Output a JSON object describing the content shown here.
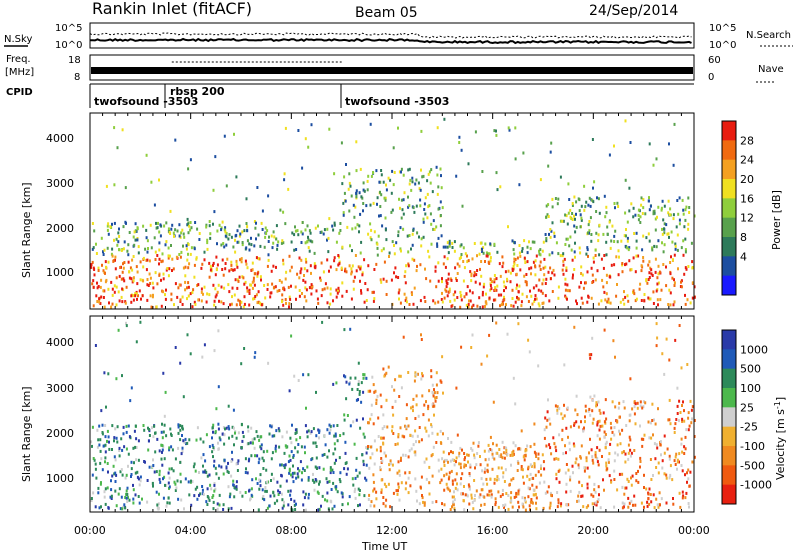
{
  "header": {
    "station": "Rankin Inlet (fitACF)",
    "beam": "Beam 05",
    "date": "24/Sep/2014"
  },
  "param_panels": {
    "nsky_label": "N.Sky",
    "nsearch_label": "N.Search",
    "freq_label": "Freq.",
    "freq_unit": "[MHz]",
    "nave_label": "Nave",
    "cpid_label": "CPID",
    "noise_ticks_left": [
      "10^5",
      "10^0"
    ],
    "noise_ticks_right": [
      "10^5",
      "10^0"
    ],
    "freq_ticks": [
      "18",
      "8"
    ],
    "nave_ticks": [
      "60",
      "0"
    ],
    "cpid_segments": [
      {
        "label": "twofsound -3503",
        "start_hour": 0
      },
      {
        "label": "rbsp 200",
        "start_hour": 3.25
      },
      {
        "label": "twofsound -3503",
        "start_hour": 10.0
      }
    ]
  },
  "chart_data": [
    {
      "type": "heatmap",
      "title": "Power",
      "ylabel": "Slant Range [km]",
      "y_ticks": [
        "1000",
        "2000",
        "3000",
        "4000"
      ],
      "ylim": [
        180,
        4500
      ],
      "colorbar": {
        "label": "Power [dB]",
        "ticks": [
          "28",
          "24",
          "20",
          "16",
          "12",
          "8",
          "4"
        ],
        "levels": [
          0,
          4,
          8,
          12,
          16,
          20,
          24,
          28,
          32
        ],
        "colors": [
          "#1a1aff",
          "#1c4ea0",
          "#2d7a5a",
          "#58a14c",
          "#8fce3c",
          "#f0e020",
          "#f4a020",
          "#f06a10",
          "#e81c10"
        ]
      }
    },
    {
      "type": "heatmap",
      "title": "Velocity",
      "ylabel": "Slant Range [km]",
      "y_ticks": [
        "1000",
        "2000",
        "3000",
        "4000"
      ],
      "ylim": [
        180,
        4500
      ],
      "colorbar": {
        "label": "Velocity [m s^-1]",
        "ticks": [
          "1000",
          "500",
          "100",
          "25",
          "-25",
          "-100",
          "-500",
          "-1000"
        ],
        "colors": [
          "#2a3aa8",
          "#1f5ab8",
          "#2d8a5a",
          "#4cb84c",
          "#cfcfcf",
          "#f0b030",
          "#f08a20",
          "#f05a10",
          "#e82010"
        ]
      }
    }
  ],
  "x_axis": {
    "label": "Time UT",
    "ticks": [
      "00:00",
      "04:00",
      "08:00",
      "12:00",
      "16:00",
      "20:00",
      "00:00"
    ],
    "range_hours": [
      0,
      24
    ]
  }
}
